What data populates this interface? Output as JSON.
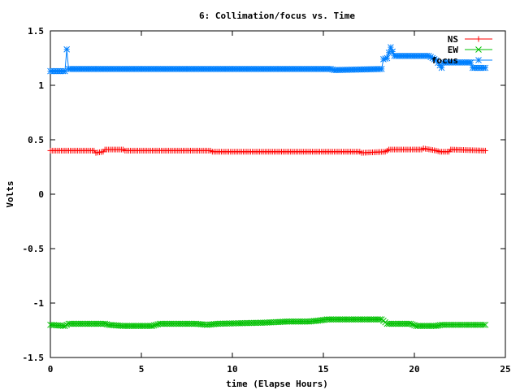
{
  "chart_data": {
    "type": "line",
    "title": "6: Collimation/focus vs. Time",
    "xlabel": "time (Elapse Hours)",
    "ylabel": "Volts",
    "xlim": [
      0,
      25
    ],
    "ylim": [
      -1.5,
      1.5
    ],
    "xticks": [
      "0",
      "5",
      "10",
      "15",
      "20",
      "25"
    ],
    "yticks": [
      "-1.5",
      "-1",
      "-0.5",
      "0",
      "0.5",
      "1",
      "1.5"
    ],
    "grid": false,
    "legend_position": "top-right",
    "series": [
      {
        "name": "NS",
        "color": "#ff0000",
        "marker": "plus",
        "points": [
          [
            0,
            0.4
          ],
          [
            2.4,
            0.4
          ],
          [
            2.5,
            0.38
          ],
          [
            2.9,
            0.39
          ],
          [
            3.0,
            0.41
          ],
          [
            4.0,
            0.41
          ],
          [
            4.1,
            0.4
          ],
          [
            8.8,
            0.4
          ],
          [
            8.9,
            0.39
          ],
          [
            17.0,
            0.39
          ],
          [
            17.1,
            0.38
          ],
          [
            18.4,
            0.39
          ],
          [
            18.6,
            0.41
          ],
          [
            20.4,
            0.41
          ],
          [
            20.5,
            0.42
          ],
          [
            21.2,
            0.4
          ],
          [
            21.4,
            0.39
          ],
          [
            21.9,
            0.39
          ],
          [
            22.0,
            0.41
          ],
          [
            23.9,
            0.4
          ]
        ]
      },
      {
        "name": "EW",
        "color": "#00c000",
        "marker": "cross",
        "points": [
          [
            0,
            -1.2
          ],
          [
            0.8,
            -1.21
          ],
          [
            1.0,
            -1.19
          ],
          [
            3.0,
            -1.19
          ],
          [
            3.2,
            -1.2
          ],
          [
            4.0,
            -1.21
          ],
          [
            5.6,
            -1.21
          ],
          [
            6.0,
            -1.19
          ],
          [
            8.0,
            -1.19
          ],
          [
            8.6,
            -1.2
          ],
          [
            9.2,
            -1.19
          ],
          [
            11.8,
            -1.18
          ],
          [
            13.0,
            -1.17
          ],
          [
            14.2,
            -1.17
          ],
          [
            14.8,
            -1.16
          ],
          [
            15.2,
            -1.15
          ],
          [
            18.2,
            -1.15
          ],
          [
            18.5,
            -1.19
          ],
          [
            19.8,
            -1.19
          ],
          [
            20.1,
            -1.21
          ],
          [
            21.2,
            -1.21
          ],
          [
            21.5,
            -1.2
          ],
          [
            23.9,
            -1.2
          ]
        ]
      },
      {
        "name": "focus",
        "color": "#0080ff",
        "marker": "star",
        "points": [
          [
            0,
            1.13
          ],
          [
            0.8,
            1.13
          ],
          [
            0.9,
            1.33
          ],
          [
            1.0,
            1.15
          ],
          [
            1.5,
            1.15
          ],
          [
            15.4,
            1.15
          ],
          [
            15.6,
            1.14
          ],
          [
            18.2,
            1.15
          ],
          [
            18.3,
            1.24
          ],
          [
            18.5,
            1.25
          ],
          [
            18.7,
            1.35
          ],
          [
            18.9,
            1.27
          ],
          [
            20.8,
            1.27
          ],
          [
            21.0,
            1.25
          ],
          [
            21.2,
            1.23
          ],
          [
            21.5,
            1.16
          ],
          [
            21.6,
            1.21
          ],
          [
            23.1,
            1.21
          ],
          [
            23.2,
            1.16
          ],
          [
            23.9,
            1.16
          ]
        ]
      }
    ]
  }
}
